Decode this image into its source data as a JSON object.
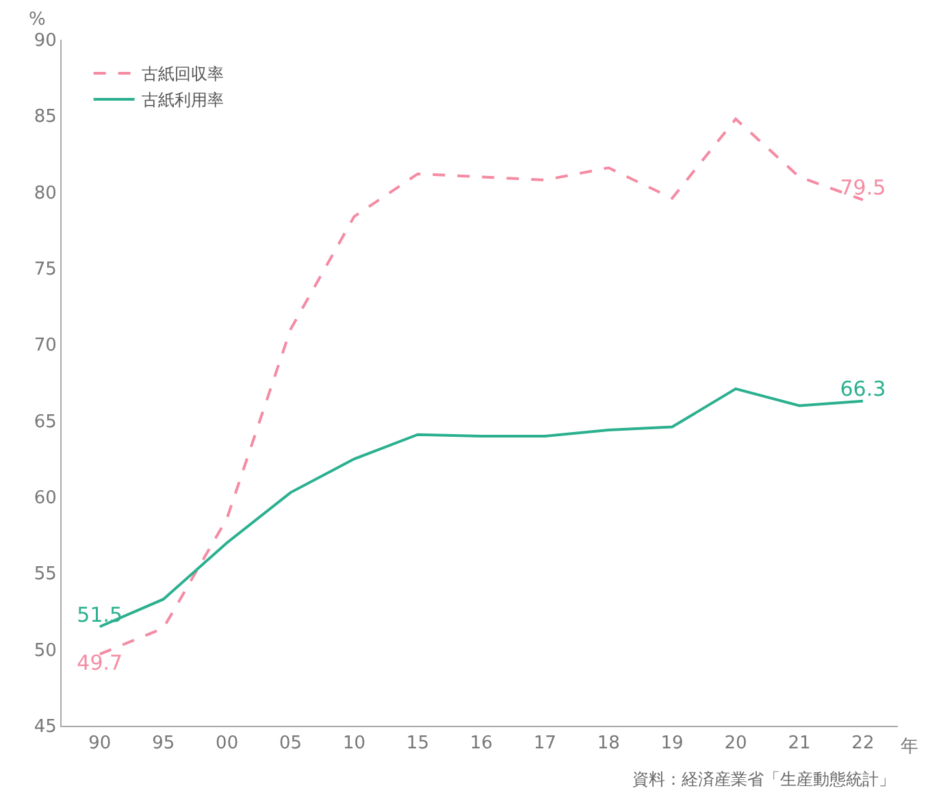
{
  "chart_data": {
    "type": "line",
    "categories": [
      "90",
      "95",
      "00",
      "05",
      "10",
      "15",
      "16",
      "17",
      "18",
      "19",
      "20",
      "21",
      "22"
    ],
    "series": [
      {
        "name": "古紙回収率",
        "color": "#f48ba3",
        "line_style": "dashed",
        "values": [
          49.7,
          51.4,
          58.6,
          71.0,
          78.4,
          81.2,
          81.0,
          80.8,
          81.6,
          79.6,
          84.8,
          81.0,
          79.5
        ],
        "value_labels": [
          "49.7",
          null,
          null,
          null,
          null,
          null,
          null,
          null,
          null,
          null,
          null,
          null,
          "79.5"
        ]
      },
      {
        "name": "古紙利用率",
        "color": "#2bb08f",
        "line_style": "solid",
        "values": [
          51.5,
          53.3,
          57.0,
          60.3,
          62.5,
          64.1,
          64.0,
          64.0,
          64.4,
          64.6,
          67.1,
          66.0,
          66.3
        ],
        "value_labels": [
          "51.5",
          null,
          null,
          null,
          null,
          null,
          null,
          null,
          null,
          null,
          null,
          null,
          "66.3"
        ]
      }
    ],
    "ylabel": "%",
    "xlabel": "年",
    "ylim": [
      45,
      90
    ],
    "yticks": [
      45,
      50,
      55,
      60,
      65,
      70,
      75,
      80,
      85,
      90
    ],
    "grid": false,
    "legend": "top left",
    "marker": "none",
    "annotations": [
      "資料：経済産業省「生産動態統計」"
    ]
  }
}
